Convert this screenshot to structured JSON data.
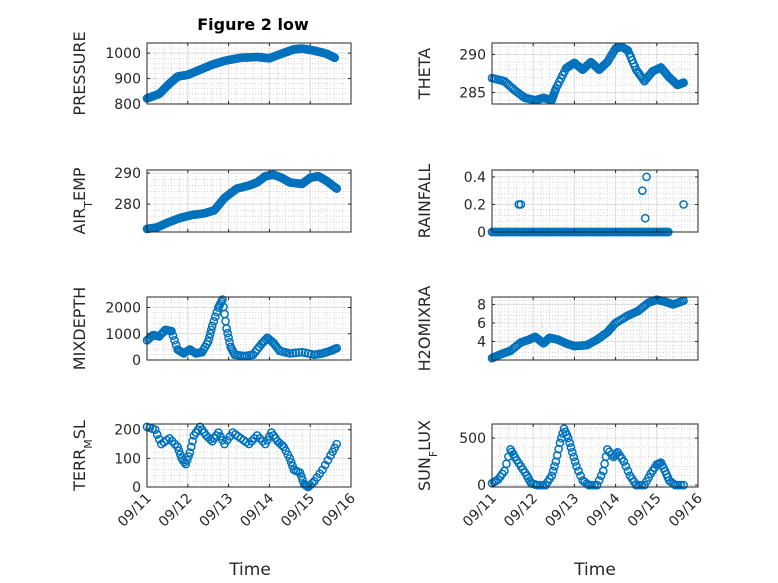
{
  "figure": {
    "title": "Figure 2 low",
    "xlabel": "Time",
    "date_ticks": [
      "09/11",
      "09/12",
      "09/13",
      "09/14",
      "09/15",
      "09/16"
    ]
  },
  "colors": {
    "marker": "#0072BD",
    "axis": "#262626",
    "grid": "#dcdcdc",
    "minor_grid": "#bdbdbd"
  },
  "chart_data": [
    {
      "type": "scatter",
      "ylabel": "PRESSURE",
      "title": "Figure 2 low",
      "xlim": [
        0,
        5
      ],
      "ylim": [
        800,
        1040
      ],
      "yticks": [
        800,
        900,
        1000
      ],
      "ytick_labels": [
        "800",
        "900",
        "1000"
      ],
      "anchors": [
        [
          0,
          822
        ],
        [
          0.3,
          840
        ],
        [
          0.55,
          880
        ],
        [
          0.75,
          908
        ],
        [
          1.0,
          915
        ],
        [
          1.3,
          935
        ],
        [
          1.6,
          955
        ],
        [
          1.9,
          970
        ],
        [
          2.3,
          982
        ],
        [
          2.7,
          985
        ],
        [
          3.0,
          980
        ],
        [
          3.3,
          998
        ],
        [
          3.6,
          1015
        ],
        [
          3.8,
          1018
        ],
        [
          4.1,
          1010
        ],
        [
          4.4,
          998
        ],
        [
          4.6,
          982
        ]
      ],
      "density": 12
    },
    {
      "type": "scatter",
      "ylabel": "THETA",
      "xlim": [
        0,
        5
      ],
      "ylim": [
        283.5,
        291.5
      ],
      "yticks": [
        285,
        290
      ],
      "ytick_labels": [
        "285",
        "290"
      ],
      "anchors": [
        [
          0,
          286.9
        ],
        [
          0.3,
          286.5
        ],
        [
          0.55,
          285.3
        ],
        [
          0.8,
          284.3
        ],
        [
          1.05,
          284.0
        ],
        [
          1.25,
          284.3
        ],
        [
          1.45,
          284.0
        ],
        [
          1.55,
          285.5
        ],
        [
          1.8,
          288.2
        ],
        [
          2.0,
          288.9
        ],
        [
          2.2,
          288.0
        ],
        [
          2.4,
          289.0
        ],
        [
          2.6,
          288.0
        ],
        [
          2.8,
          289.0
        ],
        [
          3.0,
          290.8
        ],
        [
          3.15,
          291.0
        ],
        [
          3.3,
          290.5
        ],
        [
          3.5,
          288.0
        ],
        [
          3.7,
          286.5
        ],
        [
          3.9,
          287.8
        ],
        [
          4.1,
          288.3
        ],
        [
          4.3,
          287.0
        ],
        [
          4.5,
          286.0
        ],
        [
          4.65,
          286.3
        ]
      ],
      "density": 6
    },
    {
      "type": "scatter",
      "ylabel": "AIR_TEMP",
      "ylabel_main": "AIR",
      "ylabel_sub": "T",
      "ylabel_rest": "EMP",
      "xlim": [
        0,
        5
      ],
      "ylim": [
        271,
        291
      ],
      "yticks": [
        280,
        290
      ],
      "ytick_labels": [
        "280",
        "290"
      ],
      "anchors": [
        [
          0,
          272.0
        ],
        [
          0.25,
          272.5
        ],
        [
          0.5,
          274.0
        ],
        [
          0.8,
          275.5
        ],
        [
          1.1,
          276.5
        ],
        [
          1.4,
          277.0
        ],
        [
          1.65,
          278.0
        ],
        [
          1.9,
          282.0
        ],
        [
          2.2,
          285.0
        ],
        [
          2.5,
          286.0
        ],
        [
          2.7,
          287.0
        ],
        [
          2.9,
          289.0
        ],
        [
          3.1,
          289.5
        ],
        [
          3.3,
          288.5
        ],
        [
          3.5,
          287.0
        ],
        [
          3.8,
          286.5
        ],
        [
          4.0,
          288.5
        ],
        [
          4.2,
          289.0
        ],
        [
          4.4,
          287.5
        ],
        [
          4.65,
          285.0
        ]
      ],
      "density": 8
    },
    {
      "type": "scatter",
      "ylabel": "RAINFALL",
      "xlim": [
        0,
        5
      ],
      "ylim": [
        0,
        0.45
      ],
      "yticks": [
        0,
        0.2,
        0.4
      ],
      "ytick_labels": [
        "0",
        "0.2",
        "0.4"
      ],
      "baseline": {
        "from": 0,
        "to": 4.3,
        "step": 0.04,
        "value": 0
      },
      "extra": [
        [
          0.65,
          0.2
        ],
        [
          0.7,
          0.2
        ],
        [
          3.65,
          0.3
        ],
        [
          3.75,
          0.4
        ],
        [
          3.72,
          0.1
        ],
        [
          4.65,
          0.2
        ]
      ]
    },
    {
      "type": "scatter",
      "ylabel": "MIXDEPTH",
      "xlim": [
        0,
        5
      ],
      "ylim": [
        0,
        2400
      ],
      "yticks": [
        0,
        1000,
        2000
      ],
      "ytick_labels": [
        "0",
        "1000",
        "2000"
      ],
      "anchors": [
        [
          0,
          750
        ],
        [
          0.15,
          950
        ],
        [
          0.3,
          900
        ],
        [
          0.45,
          1150
        ],
        [
          0.6,
          1100
        ],
        [
          0.75,
          400
        ],
        [
          0.9,
          250
        ],
        [
          1.05,
          400
        ],
        [
          1.2,
          250
        ],
        [
          1.35,
          300
        ],
        [
          1.5,
          700
        ],
        [
          1.6,
          1300
        ],
        [
          1.75,
          2000
        ],
        [
          1.85,
          2300
        ],
        [
          1.95,
          1200
        ],
        [
          2.05,
          500
        ],
        [
          2.15,
          200
        ],
        [
          2.4,
          150
        ],
        [
          2.6,
          200
        ],
        [
          2.8,
          600
        ],
        [
          2.95,
          850
        ],
        [
          3.1,
          650
        ],
        [
          3.25,
          350
        ],
        [
          3.5,
          250
        ],
        [
          3.8,
          300
        ],
        [
          4.1,
          200
        ],
        [
          4.3,
          250
        ],
        [
          4.5,
          350
        ],
        [
          4.65,
          450
        ]
      ],
      "density": 4
    },
    {
      "type": "scatter",
      "ylabel": "H2OMIXRA",
      "xlim": [
        0,
        5
      ],
      "ylim": [
        2.0,
        8.8
      ],
      "yticks": [
        4,
        6,
        8
      ],
      "ytick_labels": [
        "4",
        "6",
        "8"
      ],
      "anchors": [
        [
          0,
          2.2
        ],
        [
          0.2,
          2.6
        ],
        [
          0.45,
          3.0
        ],
        [
          0.7,
          3.9
        ],
        [
          0.9,
          4.2
        ],
        [
          1.05,
          4.5
        ],
        [
          1.25,
          3.8
        ],
        [
          1.4,
          4.4
        ],
        [
          1.6,
          4.2
        ],
        [
          1.8,
          3.8
        ],
        [
          2.0,
          3.5
        ],
        [
          2.3,
          3.6
        ],
        [
          2.55,
          4.2
        ],
        [
          2.8,
          5.0
        ],
        [
          3.0,
          6.0
        ],
        [
          3.3,
          6.8
        ],
        [
          3.55,
          7.3
        ],
        [
          3.8,
          8.2
        ],
        [
          4.0,
          8.5
        ],
        [
          4.2,
          8.3
        ],
        [
          4.4,
          8.0
        ],
        [
          4.65,
          8.4
        ]
      ],
      "density": 6
    },
    {
      "type": "scatter",
      "ylabel": "TERR_MSL",
      "ylabel_main": "TERR",
      "ylabel_sub": "M",
      "ylabel_rest": "SL",
      "xlim": [
        0,
        5
      ],
      "ylim": [
        0,
        220
      ],
      "yticks": [
        0,
        100,
        200
      ],
      "ytick_labels": [
        "0",
        "100",
        "200"
      ],
      "anchors": [
        [
          0,
          210
        ],
        [
          0.2,
          200
        ],
        [
          0.35,
          150
        ],
        [
          0.55,
          170
        ],
        [
          0.75,
          140
        ],
        [
          0.85,
          100
        ],
        [
          0.95,
          80
        ],
        [
          1.05,
          120
        ],
        [
          1.15,
          180
        ],
        [
          1.3,
          210
        ],
        [
          1.45,
          180
        ],
        [
          1.6,
          160
        ],
        [
          1.75,
          190
        ],
        [
          1.9,
          150
        ],
        [
          2.1,
          190
        ],
        [
          2.3,
          170
        ],
        [
          2.5,
          150
        ],
        [
          2.7,
          180
        ],
        [
          2.9,
          150
        ],
        [
          3.05,
          190
        ],
        [
          3.2,
          160
        ],
        [
          3.35,
          140
        ],
        [
          3.5,
          100
        ],
        [
          3.6,
          60
        ],
        [
          3.75,
          50
        ],
        [
          3.85,
          10
        ],
        [
          3.95,
          0
        ],
        [
          4.1,
          20
        ],
        [
          4.3,
          60
        ],
        [
          4.5,
          110
        ],
        [
          4.65,
          150
        ]
      ],
      "density": 3
    },
    {
      "type": "scatter",
      "ylabel": "SUN_FLUX",
      "ylabel_main": "SUN",
      "ylabel_sub": "F",
      "ylabel_rest": "LUX",
      "xlim": [
        0,
        5
      ],
      "ylim": [
        -20,
        650
      ],
      "yticks": [
        0,
        500
      ],
      "ytick_labels": [
        "0",
        "500"
      ],
      "anchors": [
        [
          0,
          20
        ],
        [
          0.15,
          60
        ],
        [
          0.3,
          150
        ],
        [
          0.45,
          380
        ],
        [
          0.55,
          300
        ],
        [
          0.7,
          200
        ],
        [
          0.85,
          100
        ],
        [
          0.95,
          20
        ],
        [
          1.1,
          0
        ],
        [
          1.3,
          0
        ],
        [
          1.45,
          100
        ],
        [
          1.55,
          250
        ],
        [
          1.65,
          450
        ],
        [
          1.75,
          600
        ],
        [
          1.85,
          500
        ],
        [
          1.95,
          350
        ],
        [
          2.05,
          200
        ],
        [
          2.2,
          50
        ],
        [
          2.35,
          0
        ],
        [
          2.55,
          0
        ],
        [
          2.7,
          150
        ],
        [
          2.8,
          380
        ],
        [
          2.95,
          300
        ],
        [
          3.05,
          350
        ],
        [
          3.2,
          250
        ],
        [
          3.35,
          100
        ],
        [
          3.5,
          0
        ],
        [
          3.7,
          0
        ],
        [
          3.85,
          120
        ],
        [
          4.0,
          220
        ],
        [
          4.1,
          240
        ],
        [
          4.2,
          150
        ],
        [
          4.3,
          50
        ],
        [
          4.45,
          0
        ],
        [
          4.65,
          0
        ]
      ],
      "density": 3
    }
  ]
}
